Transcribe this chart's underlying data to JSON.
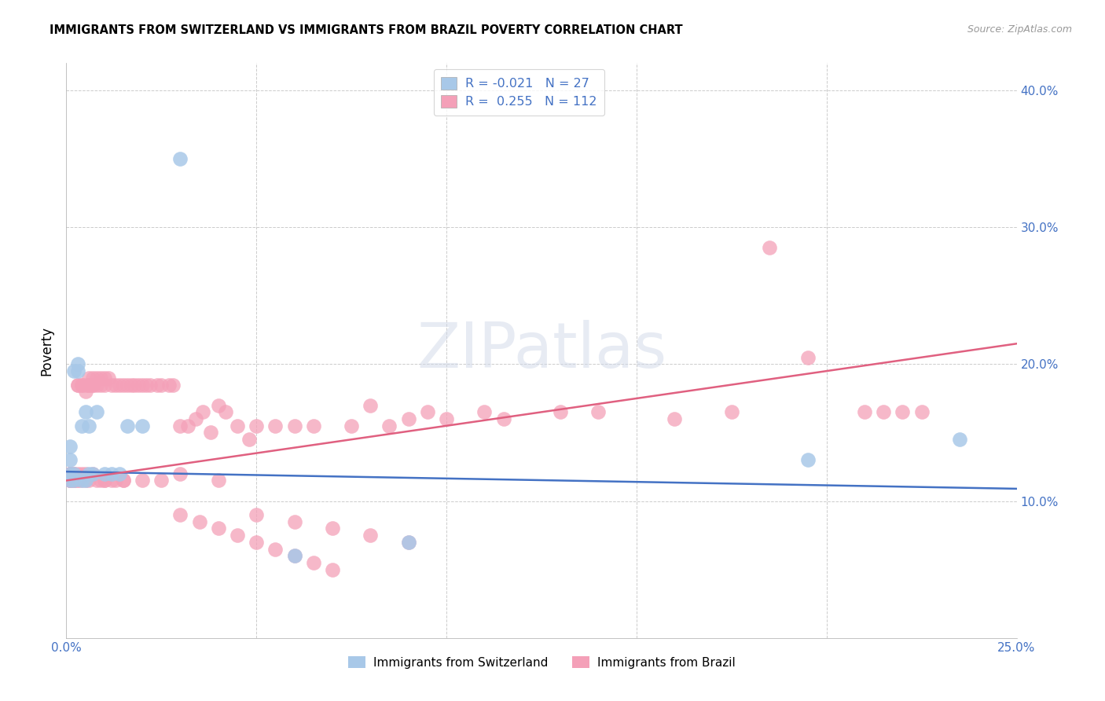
{
  "title": "IMMIGRANTS FROM SWITZERLAND VS IMMIGRANTS FROM BRAZIL POVERTY CORRELATION CHART",
  "source": "Source: ZipAtlas.com",
  "xlim": [
    0.0,
    0.25
  ],
  "ylim": [
    0.0,
    0.42
  ],
  "series1_label": "Immigrants from Switzerland",
  "series2_label": "Immigrants from Brazil",
  "series1_color": "#a8c8e8",
  "series2_color": "#f4a0b8",
  "series1_line_color": "#4472c4",
  "series2_line_color": "#e06080",
  "series1_R": -0.021,
  "series1_N": 27,
  "series2_R": 0.255,
  "series2_N": 112,
  "watermark": "ZIPatlas",
  "series1_x": [
    0.001,
    0.001,
    0.001,
    0.001,
    0.002,
    0.002,
    0.002,
    0.003,
    0.003,
    0.004,
    0.004,
    0.005,
    0.005,
    0.006,
    0.006,
    0.007,
    0.008,
    0.01,
    0.012,
    0.014,
    0.016,
    0.02,
    0.03,
    0.06,
    0.09,
    0.195,
    0.235
  ],
  "series1_y": [
    0.115,
    0.12,
    0.13,
    0.14,
    0.115,
    0.12,
    0.195,
    0.195,
    0.2,
    0.115,
    0.155,
    0.115,
    0.165,
    0.12,
    0.155,
    0.12,
    0.165,
    0.12,
    0.12,
    0.12,
    0.155,
    0.155,
    0.35,
    0.06,
    0.07,
    0.13,
    0.145
  ],
  "series2_x": [
    0.001,
    0.001,
    0.001,
    0.001,
    0.001,
    0.001,
    0.001,
    0.001,
    0.002,
    0.002,
    0.002,
    0.002,
    0.002,
    0.003,
    0.003,
    0.003,
    0.003,
    0.003,
    0.004,
    0.004,
    0.004,
    0.004,
    0.005,
    0.005,
    0.005,
    0.005,
    0.006,
    0.006,
    0.006,
    0.006,
    0.007,
    0.007,
    0.007,
    0.007,
    0.008,
    0.008,
    0.008,
    0.009,
    0.009,
    0.009,
    0.01,
    0.01,
    0.01,
    0.011,
    0.012,
    0.012,
    0.013,
    0.013,
    0.014,
    0.015,
    0.015,
    0.016,
    0.017,
    0.018,
    0.019,
    0.02,
    0.021,
    0.022,
    0.024,
    0.025,
    0.027,
    0.028,
    0.03,
    0.032,
    0.034,
    0.036,
    0.038,
    0.04,
    0.042,
    0.045,
    0.048,
    0.05,
    0.055,
    0.06,
    0.065,
    0.075,
    0.08,
    0.085,
    0.09,
    0.095,
    0.1,
    0.11,
    0.115,
    0.13,
    0.14,
    0.16,
    0.175,
    0.185,
    0.195,
    0.21,
    0.215,
    0.22,
    0.225,
    0.03,
    0.04,
    0.05,
    0.06,
    0.07,
    0.08,
    0.09,
    0.01,
    0.015,
    0.02,
    0.025,
    0.03,
    0.035,
    0.04,
    0.045,
    0.05,
    0.055,
    0.06,
    0.065,
    0.07
  ],
  "series2_y": [
    0.115,
    0.12,
    0.115,
    0.12,
    0.115,
    0.12,
    0.115,
    0.12,
    0.115,
    0.12,
    0.115,
    0.12,
    0.115,
    0.115,
    0.12,
    0.115,
    0.185,
    0.185,
    0.115,
    0.12,
    0.185,
    0.185,
    0.115,
    0.12,
    0.18,
    0.185,
    0.115,
    0.185,
    0.185,
    0.19,
    0.12,
    0.185,
    0.185,
    0.19,
    0.115,
    0.185,
    0.19,
    0.115,
    0.185,
    0.19,
    0.115,
    0.185,
    0.19,
    0.19,
    0.115,
    0.185,
    0.115,
    0.185,
    0.185,
    0.115,
    0.185,
    0.185,
    0.185,
    0.185,
    0.185,
    0.185,
    0.185,
    0.185,
    0.185,
    0.185,
    0.185,
    0.185,
    0.155,
    0.155,
    0.16,
    0.165,
    0.15,
    0.17,
    0.165,
    0.155,
    0.145,
    0.155,
    0.155,
    0.155,
    0.155,
    0.155,
    0.17,
    0.155,
    0.16,
    0.165,
    0.16,
    0.165,
    0.16,
    0.165,
    0.165,
    0.16,
    0.165,
    0.285,
    0.205,
    0.165,
    0.165,
    0.165,
    0.165,
    0.12,
    0.115,
    0.09,
    0.085,
    0.08,
    0.075,
    0.07,
    0.115,
    0.115,
    0.115,
    0.115,
    0.09,
    0.085,
    0.08,
    0.075,
    0.07,
    0.065,
    0.06,
    0.055,
    0.05
  ]
}
